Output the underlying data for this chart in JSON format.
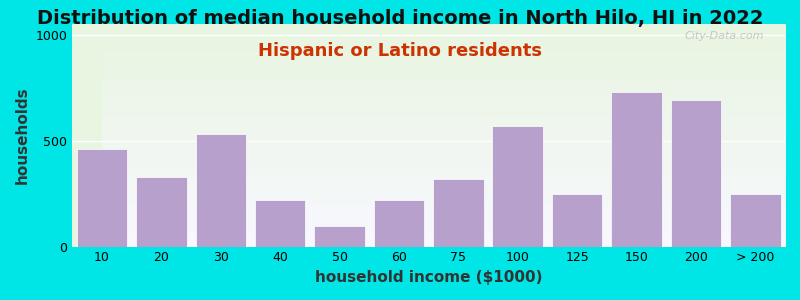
{
  "title": "Distribution of median household income in North Hilo, HI in 2022",
  "subtitle": "Hispanic or Latino residents",
  "xlabel": "household income ($1000)",
  "ylabel": "households",
  "categories": [
    "10",
    "20",
    "30",
    "40",
    "50",
    "60",
    "75",
    "100",
    "125",
    "150",
    "200",
    "> 200"
  ],
  "values": [
    460,
    330,
    530,
    220,
    95,
    220,
    320,
    570,
    250,
    730,
    690,
    250
  ],
  "bar_color": "#b8a0cc",
  "background_outer": "#00e5e5",
  "background_plot_top": "#e8f5e0",
  "background_plot_bottom": "#f5f5ff",
  "grid_color": "#ffffff",
  "yticks": [
    0,
    500,
    1000
  ],
  "ylim": [
    0,
    1050
  ],
  "title_fontsize": 14,
  "subtitle_fontsize": 13,
  "subtitle_color": "#cc3300",
  "axis_label_fontsize": 11,
  "watermark": "City-Data.com"
}
